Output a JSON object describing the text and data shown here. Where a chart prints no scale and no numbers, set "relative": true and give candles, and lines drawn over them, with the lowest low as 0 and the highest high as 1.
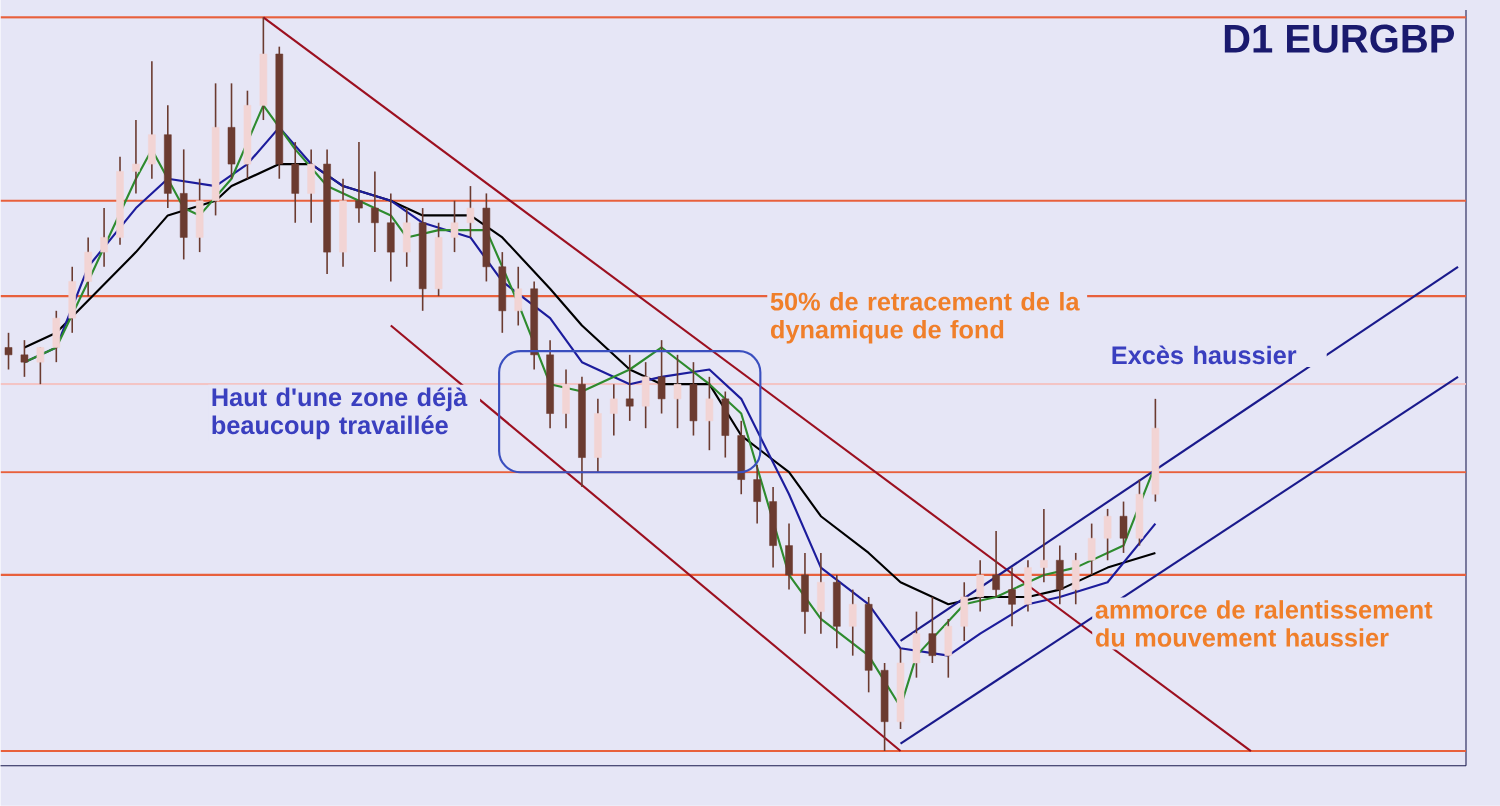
{
  "chart_data": {
    "type": "candlestick",
    "title": "D1 EURGBP",
    "relative": true,
    "categories": [
      null,
      null,
      null,
      null,
      null,
      null,
      null,
      null,
      null,
      null,
      null,
      null,
      null,
      null,
      null,
      null,
      null,
      null,
      null,
      null,
      null,
      null,
      null,
      null,
      null,
      null,
      null,
      null,
      null,
      null,
      null,
      null,
      null,
      null,
      null,
      null,
      null,
      null,
      null,
      null,
      null,
      null,
      null,
      null,
      null,
      null,
      null,
      null,
      null,
      null,
      null,
      null,
      null,
      null,
      null,
      null,
      null,
      null,
      null,
      null,
      null,
      null,
      null,
      null,
      null,
      null,
      null,
      null,
      null,
      null,
      null,
      null,
      null,
      null,
      null,
      null,
      null,
      null,
      null,
      null,
      null,
      null,
      null,
      null,
      null,
      null,
      null,
      null,
      null,
      null,
      null,
      null
    ],
    "ohlc": [
      [
        0.55,
        0.57,
        0.52,
        0.54
      ],
      [
        0.54,
        0.56,
        0.51,
        0.53
      ],
      [
        0.53,
        0.55,
        0.5,
        0.55
      ],
      [
        0.55,
        0.6,
        0.53,
        0.59
      ],
      [
        0.59,
        0.66,
        0.57,
        0.64
      ],
      [
        0.64,
        0.7,
        0.62,
        0.68
      ],
      [
        0.68,
        0.74,
        0.66,
        0.7
      ],
      [
        0.7,
        0.81,
        0.69,
        0.79
      ],
      [
        0.79,
        0.86,
        0.76,
        0.8
      ],
      [
        0.8,
        0.94,
        0.78,
        0.84
      ],
      [
        0.84,
        0.88,
        0.74,
        0.76
      ],
      [
        0.76,
        0.82,
        0.67,
        0.7
      ],
      [
        0.7,
        0.78,
        0.68,
        0.75
      ],
      [
        0.75,
        0.91,
        0.73,
        0.85
      ],
      [
        0.85,
        0.91,
        0.78,
        0.8
      ],
      [
        0.8,
        0.9,
        0.78,
        0.88
      ],
      [
        0.88,
        1.0,
        0.86,
        0.95
      ],
      [
        0.95,
        0.96,
        0.78,
        0.8
      ],
      [
        0.8,
        0.83,
        0.72,
        0.76
      ],
      [
        0.76,
        0.82,
        0.72,
        0.8
      ],
      [
        0.8,
        0.82,
        0.65,
        0.68
      ],
      [
        0.68,
        0.78,
        0.66,
        0.75
      ],
      [
        0.75,
        0.83,
        0.72,
        0.74
      ],
      [
        0.74,
        0.79,
        0.68,
        0.72
      ],
      [
        0.72,
        0.76,
        0.64,
        0.68
      ],
      [
        0.68,
        0.74,
        0.66,
        0.72
      ],
      [
        0.72,
        0.74,
        0.6,
        0.63
      ],
      [
        0.63,
        0.72,
        0.62,
        0.7
      ],
      [
        0.7,
        0.75,
        0.68,
        0.72
      ],
      [
        0.72,
        0.77,
        0.7,
        0.74
      ],
      [
        0.74,
        0.76,
        0.64,
        0.66
      ],
      [
        0.66,
        0.68,
        0.57,
        0.6
      ],
      [
        0.6,
        0.66,
        0.58,
        0.63
      ],
      [
        0.63,
        0.64,
        0.52,
        0.54
      ],
      [
        0.54,
        0.56,
        0.44,
        0.46
      ],
      [
        0.46,
        0.52,
        0.44,
        0.5
      ],
      [
        0.5,
        0.51,
        0.36,
        0.4
      ],
      [
        0.4,
        0.48,
        0.38,
        0.46
      ],
      [
        0.46,
        0.5,
        0.43,
        0.48
      ],
      [
        0.48,
        0.54,
        0.45,
        0.47
      ],
      [
        0.47,
        0.53,
        0.44,
        0.51
      ],
      [
        0.51,
        0.56,
        0.46,
        0.48
      ],
      [
        0.48,
        0.54,
        0.44,
        0.5
      ],
      [
        0.5,
        0.53,
        0.43,
        0.45
      ],
      [
        0.45,
        0.51,
        0.41,
        0.48
      ],
      [
        0.48,
        0.49,
        0.4,
        0.43
      ],
      [
        0.43,
        0.45,
        0.35,
        0.37
      ],
      [
        0.37,
        0.39,
        0.31,
        0.34
      ],
      [
        0.34,
        0.36,
        0.25,
        0.28
      ],
      [
        0.28,
        0.31,
        0.22,
        0.24
      ],
      [
        0.24,
        0.27,
        0.16,
        0.19
      ],
      [
        0.19,
        0.27,
        0.16,
        0.23
      ],
      [
        0.23,
        0.24,
        0.14,
        0.17
      ],
      [
        0.17,
        0.22,
        0.13,
        0.2
      ],
      [
        0.2,
        0.21,
        0.08,
        0.11
      ],
      [
        0.11,
        0.12,
        0.0,
        0.04
      ],
      [
        0.04,
        0.14,
        0.03,
        0.12
      ],
      [
        0.12,
        0.19,
        0.1,
        0.16
      ],
      [
        0.16,
        0.21,
        0.12,
        0.13
      ],
      [
        0.13,
        0.18,
        0.1,
        0.17
      ],
      [
        0.17,
        0.23,
        0.15,
        0.21
      ],
      [
        0.21,
        0.26,
        0.19,
        0.24
      ],
      [
        0.24,
        0.3,
        0.21,
        0.22
      ],
      [
        0.22,
        0.25,
        0.17,
        0.2
      ],
      [
        0.2,
        0.26,
        0.19,
        0.25
      ],
      [
        0.25,
        0.33,
        0.23,
        0.26
      ],
      [
        0.26,
        0.28,
        0.2,
        0.22
      ],
      [
        0.22,
        0.27,
        0.2,
        0.26
      ],
      [
        0.26,
        0.31,
        0.24,
        0.29
      ],
      [
        0.29,
        0.33,
        0.26,
        0.32
      ],
      [
        0.32,
        0.34,
        0.27,
        0.29
      ],
      [
        0.29,
        0.37,
        0.28,
        0.35
      ],
      [
        0.35,
        0.48,
        0.34,
        0.44
      ],
      null,
      null,
      null,
      null,
      null,
      null,
      null,
      null,
      null,
      null,
      null,
      null,
      null,
      null,
      null,
      null,
      null,
      null,
      null
    ],
    "series": [
      {
        "type": "line",
        "color": "#000000",
        "values": [
          null,
          0.55,
          null,
          0.57,
          null,
          null,
          null,
          null,
          0.68,
          null,
          0.73,
          null,
          null,
          0.75,
          0.77,
          null,
          null,
          0.8,
          null,
          0.8,
          null,
          0.77,
          null,
          null,
          0.75,
          null,
          0.73,
          null,
          null,
          0.73,
          null,
          0.7,
          null,
          null,
          0.63,
          null,
          0.58,
          null,
          null,
          0.52,
          null,
          0.5,
          null,
          null,
          0.5,
          null,
          0.43,
          null,
          null,
          0.38,
          null,
          0.32,
          null,
          null,
          0.27,
          null,
          0.23,
          null,
          null,
          0.2,
          null,
          0.21,
          null,
          null,
          0.21,
          null,
          0.22,
          null,
          null,
          0.25,
          null,
          null,
          0.27,
          null,
          null,
          null,
          null,
          null,
          null,
          null,
          null,
          null,
          null,
          null,
          null,
          null,
          null,
          null,
          null,
          null,
          null,
          null
        ]
      },
      {
        "type": "line",
        "color": "#1c1c9c",
        "values": [
          null,
          0.53,
          null,
          0.55,
          null,
          0.66,
          null,
          null,
          0.74,
          null,
          0.78,
          null,
          null,
          0.77,
          null,
          0.8,
          null,
          0.85,
          null,
          0.8,
          null,
          0.77,
          null,
          null,
          0.75,
          null,
          0.72,
          null,
          null,
          0.7,
          null,
          0.64,
          null,
          null,
          0.59,
          null,
          0.53,
          null,
          null,
          0.5,
          null,
          0.51,
          null,
          null,
          0.52,
          null,
          0.48,
          null,
          null,
          0.35,
          null,
          0.25,
          null,
          null,
          0.2,
          null,
          0.14,
          null,
          null,
          0.13,
          null,
          0.16,
          null,
          null,
          0.2,
          null,
          0.21,
          null,
          null,
          0.23,
          null,
          null,
          0.31,
          null,
          null,
          null,
          null,
          null,
          null,
          null,
          null,
          null,
          null,
          null,
          null,
          null,
          null,
          null,
          null,
          null,
          null,
          null
        ]
      },
      {
        "type": "line",
        "color": "#2e8b2e",
        "values": [
          null,
          0.53,
          null,
          0.55,
          null,
          0.64,
          null,
          null,
          0.78,
          0.82,
          null,
          0.74,
          0.73,
          null,
          0.78,
          null,
          0.88,
          null,
          0.82,
          null,
          0.77,
          null,
          null,
          null,
          0.73,
          0.7,
          null,
          0.71,
          null,
          null,
          0.71,
          null,
          0.61,
          null,
          0.5,
          null,
          0.49,
          null,
          null,
          0.52,
          null,
          0.55,
          null,
          null,
          0.5,
          null,
          0.46,
          null,
          null,
          0.24,
          null,
          0.18,
          null,
          null,
          0.13,
          null,
          0.06,
          0.13,
          null,
          null,
          0.2,
          null,
          0.21,
          null,
          null,
          0.24,
          null,
          0.25,
          null,
          null,
          0.28,
          null,
          0.39,
          null,
          null,
          null,
          null,
          null,
          null,
          null,
          null,
          null,
          null,
          null,
          null,
          null,
          null,
          null,
          null,
          null,
          null,
          null
        ]
      },
      {
        "type": "line",
        "color": "#9c1020",
        "values": [
          null,
          null,
          null,
          null,
          null,
          null,
          null,
          null,
          null,
          null,
          null,
          null,
          null,
          null,
          null,
          null,
          1.0,
          null,
          null,
          null,
          null,
          null,
          null,
          null,
          null,
          null,
          null,
          null,
          null,
          null,
          null,
          null,
          null,
          null,
          null,
          null,
          null,
          null,
          null,
          null,
          null,
          null,
          null,
          null,
          null,
          null,
          null,
          null,
          null,
          null,
          null,
          null,
          null,
          null,
          null,
          null,
          null,
          null,
          null,
          null,
          null,
          null,
          null,
          null,
          null,
          null,
          null,
          null,
          null,
          null,
          null,
          null,
          null,
          null,
          null,
          null,
          null,
          null,
          0.0,
          null,
          null,
          null,
          null,
          null,
          null,
          null,
          null,
          null,
          null,
          null,
          null,
          null
        ]
      },
      {
        "type": "line",
        "color": "#9c1020",
        "values": [
          null,
          null,
          null,
          null,
          null,
          null,
          null,
          null,
          null,
          null,
          null,
          null,
          null,
          null,
          null,
          null,
          null,
          null,
          null,
          null,
          null,
          null,
          null,
          null,
          0.58,
          null,
          null,
          null,
          null,
          null,
          null,
          null,
          null,
          null,
          null,
          null,
          null,
          null,
          null,
          null,
          null,
          null,
          null,
          null,
          null,
          null,
          null,
          null,
          null,
          null,
          null,
          null,
          null,
          null,
          null,
          null,
          0.0,
          null,
          null,
          null,
          null,
          null,
          null,
          null,
          null,
          null,
          null,
          null,
          null,
          null,
          null,
          null,
          null,
          null,
          null,
          null,
          null,
          null,
          null,
          null,
          null,
          null,
          null,
          null,
          null,
          null,
          null,
          null,
          null,
          null,
          null,
          null
        ]
      },
      {
        "type": "line",
        "color": "#1a1a8c",
        "values": [
          null,
          null,
          null,
          null,
          null,
          null,
          null,
          null,
          null,
          null,
          null,
          null,
          null,
          null,
          null,
          null,
          null,
          null,
          null,
          null,
          null,
          null,
          null,
          null,
          null,
          null,
          null,
          null,
          null,
          null,
          null,
          null,
          null,
          null,
          null,
          null,
          null,
          null,
          null,
          null,
          null,
          null,
          null,
          null,
          null,
          null,
          null,
          null,
          null,
          null,
          null,
          null,
          null,
          null,
          null,
          null,
          0.15,
          null,
          null,
          null,
          null,
          null,
          null,
          null,
          null,
          null,
          null,
          null,
          null,
          null,
          null,
          null,
          null,
          null,
          null,
          null,
          null,
          null,
          null,
          null,
          null,
          null,
          null,
          null,
          null,
          null,
          null,
          null,
          null,
          null,
          null,
          0.66
        ]
      },
      {
        "type": "line",
        "color": "#1a1a8c",
        "values": [
          null,
          null,
          null,
          null,
          null,
          null,
          null,
          null,
          null,
          null,
          null,
          null,
          null,
          null,
          null,
          null,
          null,
          null,
          null,
          null,
          null,
          null,
          null,
          null,
          null,
          null,
          null,
          null,
          null,
          null,
          null,
          null,
          null,
          null,
          null,
          null,
          null,
          null,
          null,
          null,
          null,
          null,
          null,
          null,
          null,
          null,
          null,
          null,
          null,
          null,
          null,
          null,
          null,
          null,
          null,
          null,
          0.01,
          null,
          null,
          null,
          null,
          null,
          null,
          null,
          null,
          null,
          null,
          null,
          null,
          null,
          null,
          null,
          null,
          null,
          null,
          null,
          null,
          null,
          null,
          null,
          null,
          null,
          null,
          null,
          null,
          null,
          null,
          null,
          null,
          null,
          null,
          0.51
        ]
      }
    ],
    "ref_lines": [
      {
        "axis": "y",
        "value": 1.0,
        "color": "#e8603c"
      },
      {
        "axis": "y",
        "value": 0.75,
        "color": "#e8603c"
      },
      {
        "axis": "y",
        "value": 0.62,
        "color": "#e8603c"
      },
      {
        "axis": "y",
        "value": 0.5,
        "color": "#f3c4c4"
      },
      {
        "axis": "y",
        "value": 0.38,
        "color": "#e8603c"
      },
      {
        "axis": "y",
        "value": 0.24,
        "color": "#e8603c"
      },
      {
        "axis": "y",
        "value": 0.0,
        "color": "#e8603c"
      }
    ],
    "annotations": [
      "50% de retracement de la dynamique de fond",
      "Excès haussier",
      "Haut d'une zone déjà beaucoup travaillée",
      "ammorce de ralentissement du mouvement haussier"
    ]
  }
}
